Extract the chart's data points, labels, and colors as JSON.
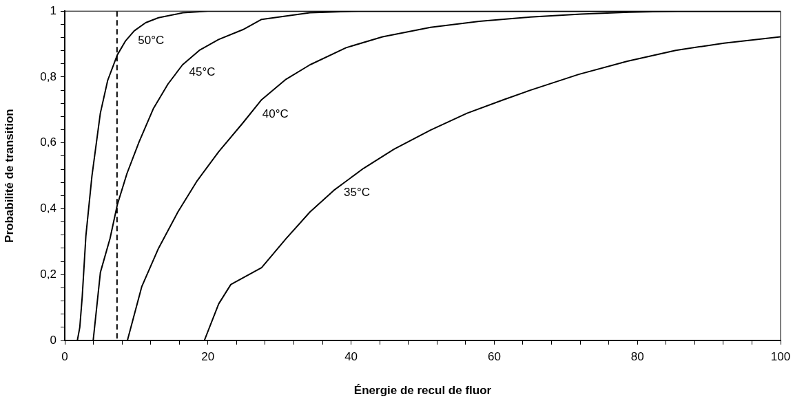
{
  "chart_data": {
    "type": "line",
    "xlabel": "Énergie de recul de fluor",
    "ylabel": "Probabilité de transition",
    "marker": "none",
    "line_style": "solid",
    "series": [
      {
        "name": "50°C",
        "color": "#000000",
        "x": [
          1.76,
          2.1,
          2.44,
          2.95,
          3.8,
          4.97,
          6.0,
          7.34,
          8.5,
          9.7,
          11.3,
          13.1,
          16.5,
          20,
          100
        ],
        "values": [
          0,
          0.04,
          0.133,
          0.317,
          0.5,
          0.69,
          0.79,
          0.867,
          0.91,
          0.94,
          0.965,
          0.98,
          0.995,
          1,
          1
        ]
      },
      {
        "name": "45°C",
        "color": "#000000",
        "x": [
          3.97,
          4.98,
          6.33,
          7.34,
          8.69,
          10.38,
          12.4,
          14.43,
          16.45,
          18.8,
          21.5,
          24.9,
          27.5,
          34.25,
          41,
          100
        ],
        "values": [
          0,
          0.207,
          0.31,
          0.412,
          0.507,
          0.603,
          0.705,
          0.779,
          0.837,
          0.881,
          0.914,
          0.944,
          0.975,
          0.995,
          1,
          1
        ]
      },
      {
        "name": "40°C",
        "color": "#000000",
        "x": [
          8.75,
          10.75,
          13.1,
          15.8,
          18.5,
          21.5,
          24.9,
          27.5,
          30.9,
          34.25,
          39.3,
          44.4,
          51.1,
          57.9,
          65.05,
          72.1,
          78.8,
          85.6,
          100
        ],
        "values": [
          0,
          0.163,
          0.28,
          0.39,
          0.485,
          0.573,
          0.661,
          0.731,
          0.793,
          0.837,
          0.889,
          0.922,
          0.951,
          0.969,
          0.982,
          0.991,
          0.997,
          1,
          1
        ]
      },
      {
        "name": "35°C",
        "color": "#000000",
        "x": [
          19.5,
          21.5,
          23.2,
          27.5,
          30.9,
          34.25,
          37.6,
          41.7,
          46.0,
          51.1,
          56.2,
          61.3,
          65.05,
          71.8,
          78.6,
          85.35,
          92.1,
          100
        ],
        "values": [
          0,
          0.111,
          0.17,
          0.221,
          0.309,
          0.39,
          0.456,
          0.522,
          0.581,
          0.639,
          0.69,
          0.731,
          0.76,
          0.808,
          0.848,
          0.881,
          0.903,
          0.922
        ]
      }
    ],
    "xlim": [
      0,
      100
    ],
    "ylim": [
      0,
      1
    ],
    "xticks": [
      0,
      {
        "value": 4,
        "label": null
      },
      {
        "value": 8,
        "label": null
      },
      {
        "value": 12,
        "label": null
      },
      {
        "value": 16,
        "label": null
      },
      20,
      {
        "value": 24,
        "label": null
      },
      {
        "value": 28,
        "label": null
      },
      {
        "value": 32,
        "label": null
      },
      {
        "value": 36,
        "label": null
      },
      40,
      {
        "value": 44,
        "label": null
      },
      {
        "value": 48,
        "label": null
      },
      {
        "value": 52,
        "label": null
      },
      {
        "value": 56,
        "label": null
      },
      60,
      {
        "value": 64,
        "label": null
      },
      {
        "value": 68,
        "label": null
      },
      {
        "value": 72,
        "label": null
      },
      {
        "value": 76,
        "label": null
      },
      80,
      {
        "value": 84,
        "label": null
      },
      {
        "value": 88,
        "label": null
      },
      {
        "value": 92,
        "label": null
      },
      {
        "value": 96,
        "label": null
      },
      100
    ],
    "yticks": [
      0,
      {
        "value": 0.04,
        "label": null
      },
      {
        "value": 0.08,
        "label": null
      },
      {
        "value": 0.12,
        "label": null
      },
      {
        "value": 0.16,
        "label": null
      },
      {
        "value": 0.2,
        "label": "0,2"
      },
      {
        "value": 0.24,
        "label": null
      },
      {
        "value": 0.28,
        "label": null
      },
      {
        "value": 0.32,
        "label": null
      },
      {
        "value": 0.36,
        "label": null
      },
      {
        "value": 0.4,
        "label": "0,4"
      },
      {
        "value": 0.44,
        "label": null
      },
      {
        "value": 0.48,
        "label": null
      },
      {
        "value": 0.52,
        "label": null
      },
      {
        "value": 0.56,
        "label": null
      },
      {
        "value": 0.6,
        "label": "0,6"
      },
      {
        "value": 0.64,
        "label": null
      },
      {
        "value": 0.68,
        "label": null
      },
      {
        "value": 0.72,
        "label": null
      },
      {
        "value": 0.76,
        "label": null
      },
      {
        "value": 0.8,
        "label": "0,8"
      },
      {
        "value": 0.84,
        "label": null
      },
      {
        "value": 0.88,
        "label": null
      },
      {
        "value": 0.92,
        "label": null
      },
      {
        "value": 0.96,
        "label": null
      },
      1
    ],
    "ref_lines": [
      {
        "axis": "x",
        "value": 7.3,
        "color": "#000000",
        "line_style": "dashed"
      }
    ]
  }
}
